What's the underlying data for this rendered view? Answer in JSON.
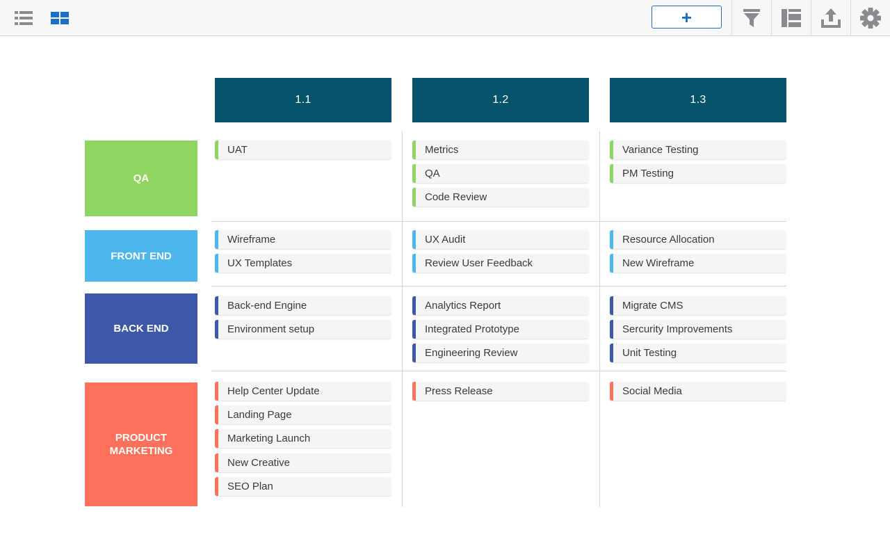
{
  "toolbar": {
    "left_icons": [
      "list-view-icon",
      "board-view-icon"
    ],
    "add_label": "+",
    "right_icons": [
      "filter-icon",
      "layout-icon",
      "export-icon",
      "settings-icon"
    ],
    "accent": "#1a6fc9"
  },
  "columns": [
    {
      "label": "1.1"
    },
    {
      "label": "1.2"
    },
    {
      "label": "1.3"
    }
  ],
  "lanes": [
    {
      "label": "QA",
      "color": "#8fd561",
      "cells": [
        [
          "UAT"
        ],
        [
          "Metrics",
          "QA",
          "Code Review"
        ],
        [
          "Variance Testing",
          "PM Testing"
        ]
      ]
    },
    {
      "label": "FRONT END",
      "color": "#4db6ed",
      "cells": [
        [
          "Wireframe",
          "UX Templates"
        ],
        [
          "UX Audit",
          "Review User Feedback"
        ],
        [
          "Resource Allocation",
          "New Wireframe"
        ]
      ]
    },
    {
      "label": "BACK END",
      "color": "#3d58a8",
      "cells": [
        [
          "Back-end Engine",
          "Environment setup"
        ],
        [
          "Analytics Report",
          "Integrated Prototype",
          "Engineering Review"
        ],
        [
          "Migrate CMS",
          "Sercurity Improvements",
          "Unit Testing"
        ]
      ]
    },
    {
      "label": "PRODUCT MARKETING",
      "color": "#fd705b",
      "cells": [
        [
          "Help Center Update",
          "Landing Page",
          "Marketing Launch",
          "New Creative",
          "SEO Plan"
        ],
        [
          "Press Release"
        ],
        [
          "Social Media"
        ]
      ]
    }
  ]
}
